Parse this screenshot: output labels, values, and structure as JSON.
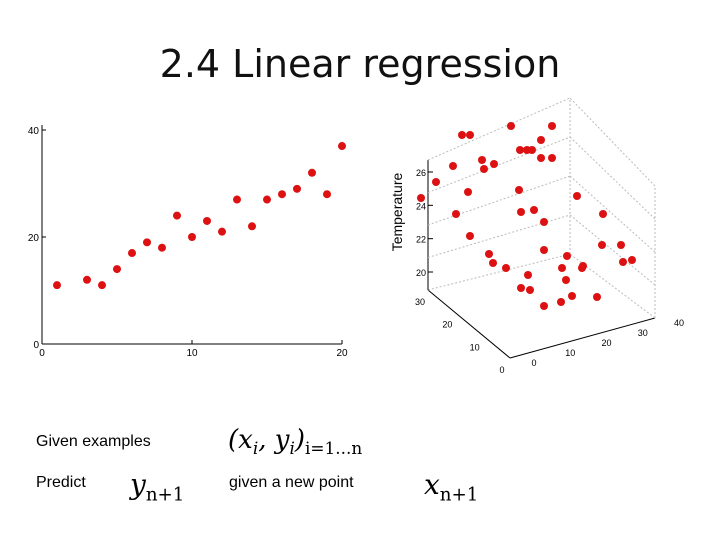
{
  "slide": {
    "title": "2.4 Linear regression",
    "given_label": "Given examples",
    "given_math": {
      "main": "(x",
      "i": "i",
      "mid": ", y",
      "i2": "i",
      "close": ")",
      "range": "i=1...n"
    },
    "predict_label": "Predict",
    "predict_math": {
      "var": "y",
      "sub": "n+1"
    },
    "given_point_label": "given a new point",
    "point_math": {
      "var": "x",
      "sub": "n+1"
    }
  },
  "chart_data": [
    {
      "type": "scatter",
      "title": "",
      "xlabel": "",
      "ylabel": "",
      "xlim": [
        0,
        20
      ],
      "ylim": [
        0,
        40
      ],
      "x_ticks": [
        "0",
        "10",
        "20"
      ],
      "y_ticks": [
        "0",
        "20",
        "40"
      ],
      "color": "#dd1111",
      "x": [
        1,
        3,
        4,
        5,
        6,
        7,
        8,
        9,
        10,
        11,
        12,
        13,
        14,
        15,
        16,
        17,
        18,
        19,
        20
      ],
      "y": [
        11,
        12,
        11,
        14,
        17,
        19,
        18,
        24,
        20,
        23,
        21,
        27,
        22,
        27,
        28,
        29,
        32,
        28,
        37
      ]
    },
    {
      "type": "scatter",
      "title": "",
      "zlabel": "Temperature",
      "xlim": [
        0,
        40
      ],
      "ylim": [
        0,
        30
      ],
      "zlim": [
        20,
        26
      ],
      "x_ticks": [
        "0",
        "10",
        "20",
        "30",
        "40"
      ],
      "y_ticks": [
        "0",
        "10",
        "20",
        "30"
      ],
      "z_ticks": [
        "20",
        "22",
        "24",
        "26"
      ],
      "color": "#dd1111"
    }
  ]
}
